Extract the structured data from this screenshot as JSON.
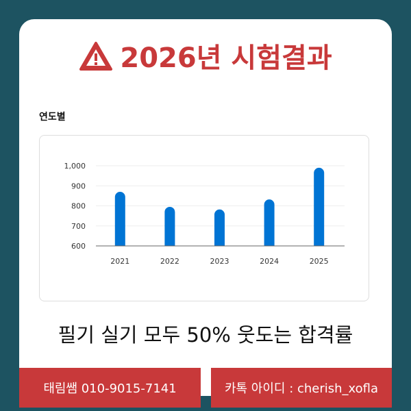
{
  "header": {
    "title": "2026년 시험결과",
    "icon": "warning-triangle-icon"
  },
  "section_label": "연도별",
  "chart_data": {
    "type": "bar",
    "categories": [
      "2021",
      "2022",
      "2023",
      "2024",
      "2025"
    ],
    "values": [
      870,
      795,
      782,
      832,
      990
    ],
    "ylim": [
      600,
      1000
    ],
    "yticks": [
      600,
      700,
      800,
      900,
      1000
    ],
    "ytick_labels": [
      "600",
      "700",
      "800",
      "900",
      "1,000"
    ],
    "grid": true,
    "color": "#0074d4"
  },
  "tagline": "필기 실기 모두 50% 웃도는 합격률",
  "footer": {
    "phone": "태림쌤 010-9015-7141",
    "kakao": "카톡 아이디 : cherish_xofla"
  },
  "colors": {
    "accent": "#c8393a",
    "background": "#1d5361"
  }
}
